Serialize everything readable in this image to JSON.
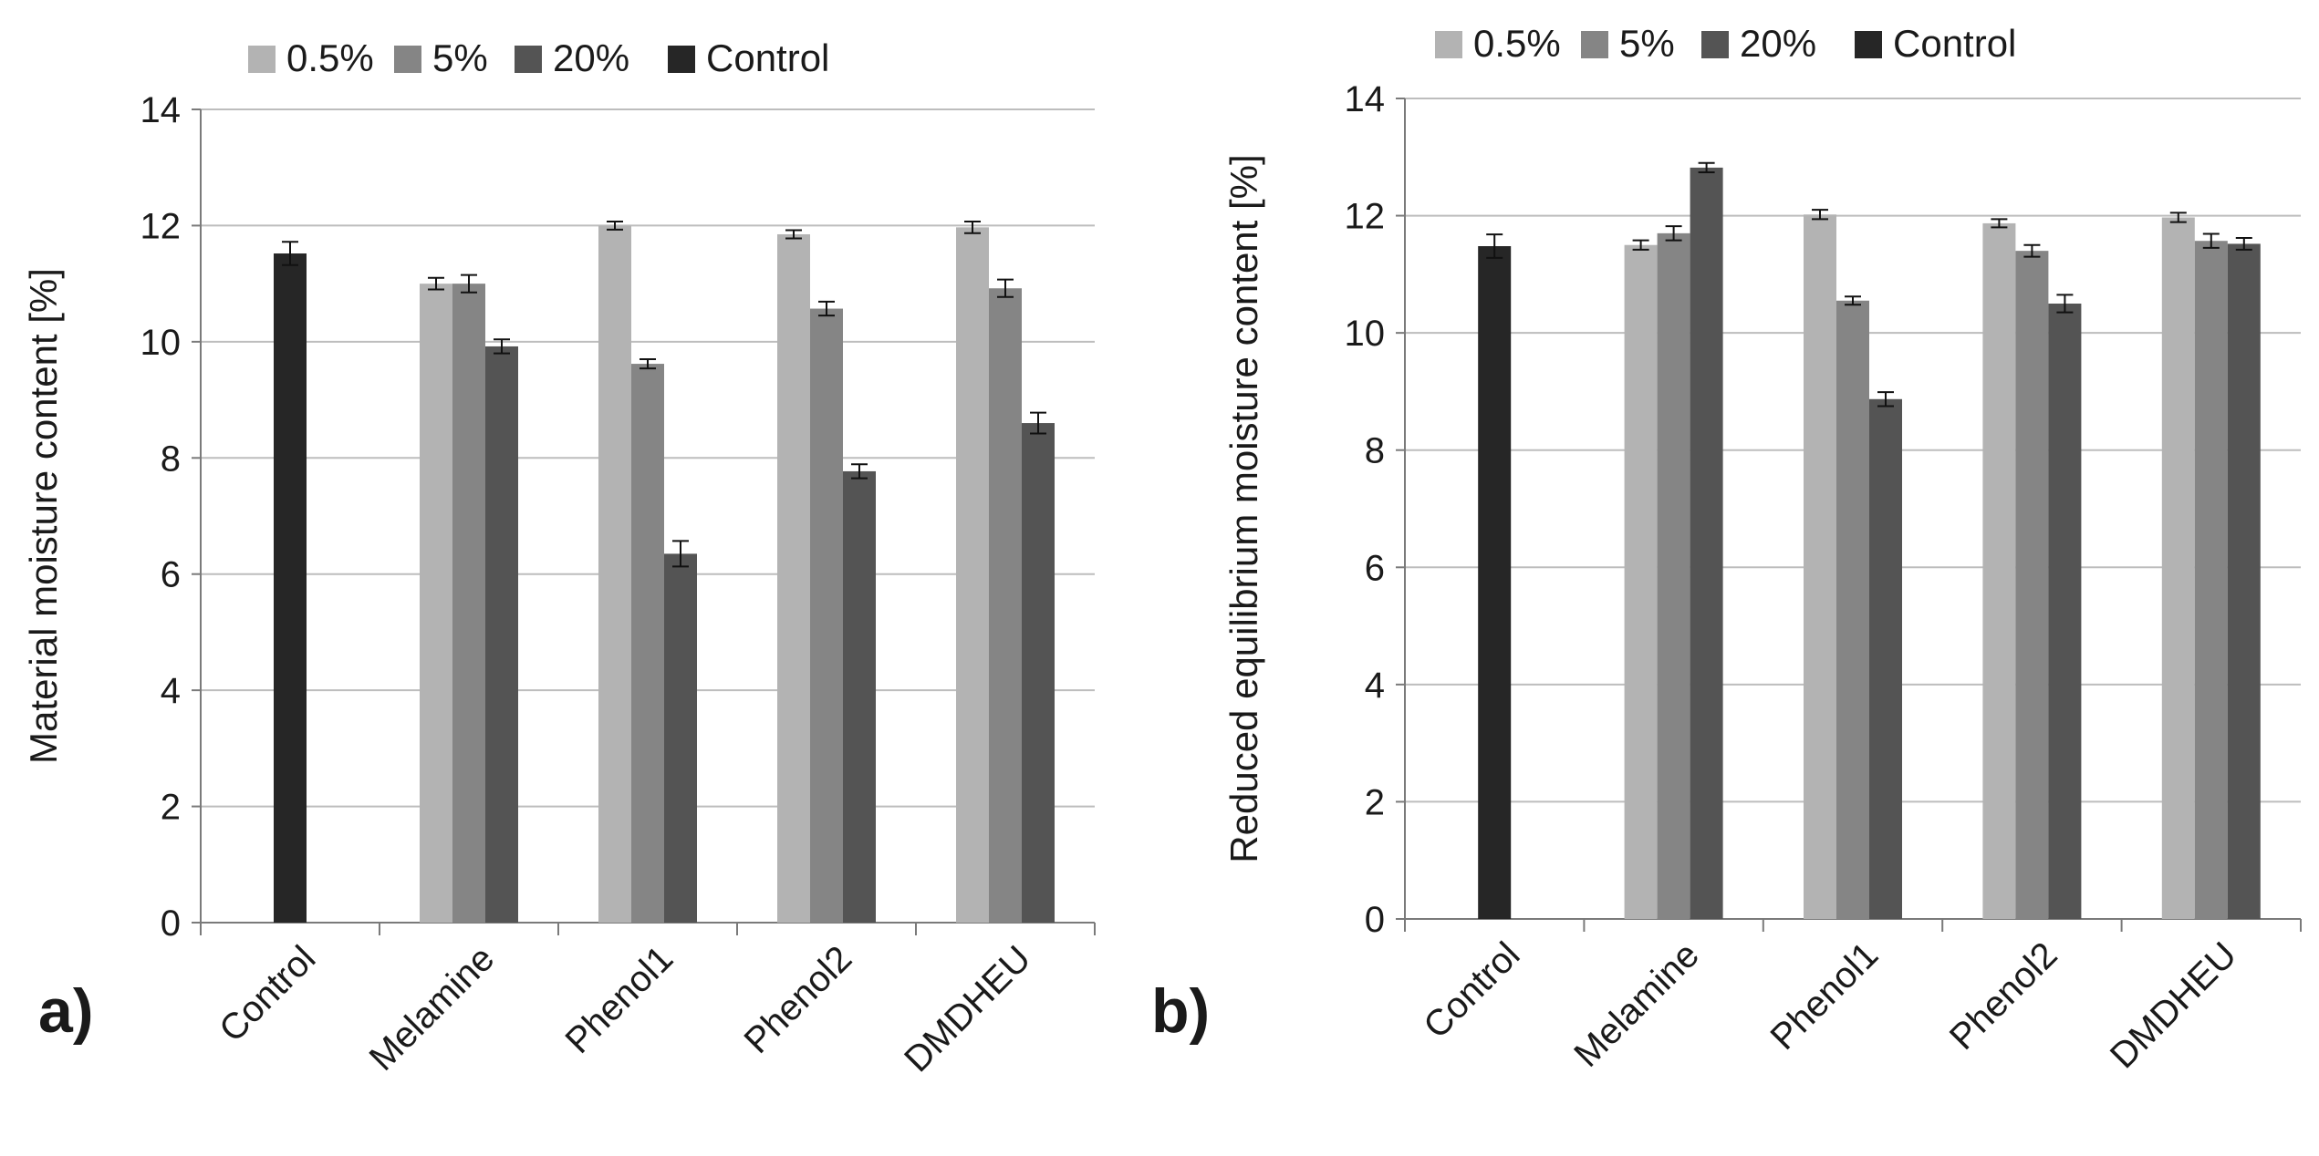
{
  "chart_data": [
    {
      "type": "bar",
      "panel_label": "a)",
      "title": "",
      "xlabel": "",
      "ylabel": "Material moisture content [%]",
      "ylim": [
        0,
        14
      ],
      "yticks": [
        "0",
        "2",
        "4",
        "6",
        "8",
        "10",
        "12",
        "14"
      ],
      "grid": true,
      "legend_position": "top",
      "categories": [
        "Control",
        "Melamine",
        "Phenol1",
        "Phenol2",
        "DMDHEU"
      ],
      "series": [
        {
          "name": "0.5%",
          "color": "#b3b3b3",
          "values": [
            null,
            11.0,
            12.0,
            11.85,
            11.97
          ],
          "errors": [
            null,
            0.1,
            0.07,
            0.07,
            0.1
          ]
        },
        {
          "name": "5%",
          "color": "#858585",
          "values": [
            null,
            11.0,
            9.62,
            10.57,
            10.92
          ],
          "errors": [
            null,
            0.15,
            0.08,
            0.12,
            0.15
          ]
        },
        {
          "name": "20%",
          "color": "#545454",
          "values": [
            null,
            9.92,
            6.35,
            7.77,
            8.6
          ],
          "errors": [
            null,
            0.12,
            0.22,
            0.12,
            0.18
          ]
        },
        {
          "name": "Control",
          "color": "#262626",
          "values": [
            11.52,
            null,
            null,
            null,
            null
          ],
          "errors": [
            0.2,
            null,
            null,
            null,
            null
          ]
        }
      ]
    },
    {
      "type": "bar",
      "panel_label": "b)",
      "title": "",
      "xlabel": "",
      "ylabel": "Reduced equilibrium moisture content [%]",
      "ylim": [
        0,
        14
      ],
      "yticks": [
        "0",
        "2",
        "4",
        "6",
        "8",
        "10",
        "12",
        "14"
      ],
      "grid": true,
      "legend_position": "top",
      "categories": [
        "Control",
        "Melamine",
        "Phenol1",
        "Phenol2",
        "DMDHEU"
      ],
      "series": [
        {
          "name": "0.5%",
          "color": "#b3b3b3",
          "values": [
            null,
            11.5,
            12.02,
            11.87,
            11.97
          ],
          "errors": [
            null,
            0.08,
            0.08,
            0.07,
            0.08
          ]
        },
        {
          "name": "5%",
          "color": "#858585",
          "values": [
            null,
            11.7,
            10.55,
            11.4,
            11.57
          ],
          "errors": [
            null,
            0.12,
            0.07,
            0.1,
            0.12
          ]
        },
        {
          "name": "20%",
          "color": "#545454",
          "values": [
            null,
            12.82,
            8.87,
            10.5,
            11.52
          ],
          "errors": [
            null,
            0.08,
            0.12,
            0.15,
            0.1
          ]
        },
        {
          "name": "Control",
          "color": "#262626",
          "values": [
            11.48,
            null,
            null,
            null,
            null
          ],
          "errors": [
            0.2,
            null,
            null,
            null,
            null
          ]
        }
      ]
    }
  ]
}
